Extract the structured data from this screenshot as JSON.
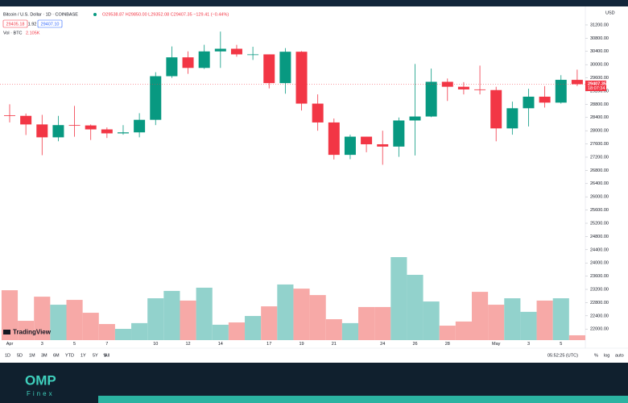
{
  "chart_data": {
    "type": "candlestick",
    "categories": [
      "Apr",
      null,
      "3",
      null,
      "5",
      null,
      "7",
      null,
      null,
      "10",
      null,
      "12",
      null,
      "14",
      null,
      null,
      "17",
      null,
      "19",
      null,
      "21",
      null,
      null,
      "24",
      null,
      "26",
      null,
      "28",
      null,
      null,
      "May",
      null,
      "3",
      null,
      "5",
      null
    ],
    "open": [
      28465,
      28450,
      28190,
      27800,
      28170,
      28160,
      28040,
      27920,
      27950,
      28330,
      29650,
      30220,
      29900,
      30400,
      30480,
      30310,
      30310,
      29440,
      30390,
      28820,
      28250,
      27270,
      27820,
      27590,
      27520,
      28310,
      28430,
      29480,
      29330,
      29250,
      29230,
      28070,
      28680,
      29030,
      28850,
      29538.87
    ],
    "high": [
      28800,
      28520,
      28480,
      28450,
      28750,
      28190,
      28100,
      28170,
      28530,
      29770,
      30550,
      30400,
      30600,
      31000,
      30600,
      30540,
      30310,
      30500,
      30410,
      29100,
      28370,
      27880,
      27820,
      28000,
      28400,
      30020,
      29880,
      29580,
      29470,
      29970,
      29330,
      28880,
      29270,
      29350,
      29680,
      29850
    ],
    "low": [
      28250,
      27870,
      27260,
      27680,
      27820,
      27720,
      27780,
      27880,
      27800,
      28170,
      29600,
      29720,
      29870,
      29900,
      30240,
      30140,
      29280,
      29120,
      28610,
      28000,
      27130,
      27140,
      27350,
      26970,
      27210,
      27250,
      28410,
      28900,
      29100,
      29100,
      27680,
      27880,
      28130,
      28700,
      28820,
      29352.08
    ],
    "close": [
      28450,
      28190,
      27800,
      28170,
      28160,
      28040,
      27920,
      27950,
      28330,
      29650,
      30220,
      29900,
      30400,
      30480,
      30310,
      30310,
      29440,
      30390,
      28820,
      28250,
      27270,
      27820,
      27590,
      27520,
      28310,
      28430,
      29480,
      29330,
      29250,
      29230,
      28070,
      28680,
      29030,
      28850,
      29540,
      29407.35
    ],
    "volume": [
      21.7,
      8.4,
      18.9,
      15.4,
      17.5,
      11.9,
      7.0,
      4.9,
      7.4,
      18.2,
      21.4,
      17.2,
      22.8,
      6.7,
      7.7,
      10.5,
      14.7,
      24.2,
      22.4,
      19.6,
      9.1,
      7.4,
      14.4,
      14.4,
      36.1,
      28.4,
      16.8,
      6.3,
      8.1,
      21.0,
      15.4,
      18.2,
      12.3,
      17.2,
      18.2,
      2.105
    ],
    "up_color": "#089981",
    "down_color": "#f23645",
    "up_volume_color": "#92d2cc",
    "down_volume_color": "#f7a9a7",
    "ylim": [
      21420,
      31760
    ],
    "yticks": [
      {
        "value": 31200,
        "label": "31200.00"
      },
      {
        "value": 30800,
        "label": "30800.00"
      },
      {
        "value": 30400,
        "label": "30400.00"
      },
      {
        "value": 30000,
        "label": "30000.00"
      },
      {
        "value": 29600,
        "label": "29600.00"
      },
      {
        "value": 29200,
        "label": "29200.00"
      },
      {
        "value": 28800,
        "label": "28800.00"
      },
      {
        "value": 28400,
        "label": "28400.00"
      },
      {
        "value": 28000,
        "label": "28000.00"
      },
      {
        "value": 27600,
        "label": "27600.00"
      },
      {
        "value": 27200,
        "label": "27200.00"
      },
      {
        "value": 26800,
        "label": "26800.00"
      },
      {
        "value": 26400,
        "label": "26400.00"
      },
      {
        "value": 26000,
        "label": "26000.00"
      },
      {
        "value": 25600,
        "label": "25600.00"
      },
      {
        "value": 25200,
        "label": "25200.00"
      },
      {
        "value": 24800,
        "label": "24800.00"
      },
      {
        "value": 24400,
        "label": "24400.00"
      },
      {
        "value": 24000,
        "label": "24000.00"
      },
      {
        "value": 23600,
        "label": "23600.00"
      },
      {
        "value": 23200,
        "label": "23200.00"
      },
      {
        "value": 22800,
        "label": "22800.00"
      },
      {
        "value": 22400,
        "label": "22400.00"
      },
      {
        "value": 22000,
        "label": "22000.00"
      }
    ],
    "last_price_label": "29407.35",
    "countdown": "18:07:34",
    "currency": "USD"
  },
  "ui": {
    "header": {
      "symbol": "Bitcoin / U.S. Dollar · 1D · COINBASE",
      "ohlc": "O29538.87 H29850.00 L29352.08 C29407.35 −129.41 (−0.44%)",
      "bid": "29405.18",
      "spread": "1.92",
      "ask": "29407.10",
      "volume_title": "Vol · BTC",
      "volume_value": "2.105K"
    },
    "logo": "TradingView",
    "ranges": [
      "1D",
      "5D",
      "1M",
      "3M",
      "6M",
      "YTD",
      "1Y",
      "5Y",
      "All"
    ],
    "clock": "05:52:25 (UTC)",
    "options": [
      "%",
      "log",
      "auto"
    ],
    "brand": {
      "name": "OMP",
      "sub": "Finex"
    }
  }
}
